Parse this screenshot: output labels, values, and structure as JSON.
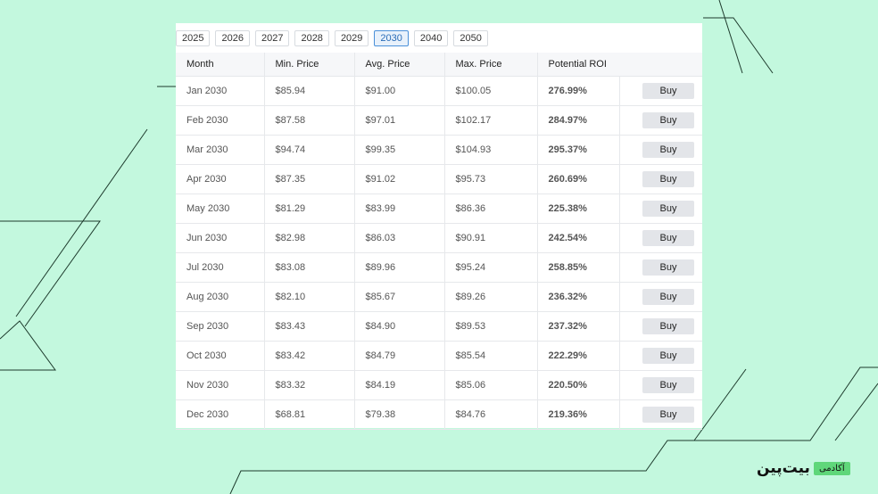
{
  "year_tabs": [
    "2025",
    "2026",
    "2027",
    "2028",
    "2029",
    "2030",
    "2040",
    "2050"
  ],
  "active_year": "2030",
  "table": {
    "headers": [
      "Month",
      "Min. Price",
      "Avg. Price",
      "Max. Price",
      "Potential ROI"
    ],
    "buy_label": "Buy",
    "rows": [
      [
        "Jan 2030",
        "$85.94",
        "$91.00",
        "$100.05",
        "276.99%"
      ],
      [
        "Feb 2030",
        "$87.58",
        "$97.01",
        "$102.17",
        "284.97%"
      ],
      [
        "Mar 2030",
        "$94.74",
        "$99.35",
        "$104.93",
        "295.37%"
      ],
      [
        "Apr 2030",
        "$87.35",
        "$91.02",
        "$95.73",
        "260.69%"
      ],
      [
        "May 2030",
        "$81.29",
        "$83.99",
        "$86.36",
        "225.38%"
      ],
      [
        "Jun 2030",
        "$82.98",
        "$86.03",
        "$90.91",
        "242.54%"
      ],
      [
        "Jul 2030",
        "$83.08",
        "$89.96",
        "$95.24",
        "258.85%"
      ],
      [
        "Aug 2030",
        "$82.10",
        "$85.67",
        "$89.26",
        "236.32%"
      ],
      [
        "Sep 2030",
        "$83.43",
        "$84.90",
        "$89.53",
        "237.32%"
      ],
      [
        "Oct 2030",
        "$83.42",
        "$84.79",
        "$85.54",
        "222.29%"
      ],
      [
        "Nov 2030",
        "$83.32",
        "$84.19",
        "$85.06",
        "220.50%"
      ],
      [
        "Dec 2030",
        "$68.81",
        "$79.38",
        "$84.76",
        "219.36%"
      ]
    ]
  },
  "logo": {
    "brand": "بیت‌پین",
    "badge": "آکادمی"
  },
  "colors": {
    "background": "#c3f8de",
    "roi": "#3cb521",
    "active_tab": "#4a90d9",
    "logo_badge": "#5fd77a"
  }
}
